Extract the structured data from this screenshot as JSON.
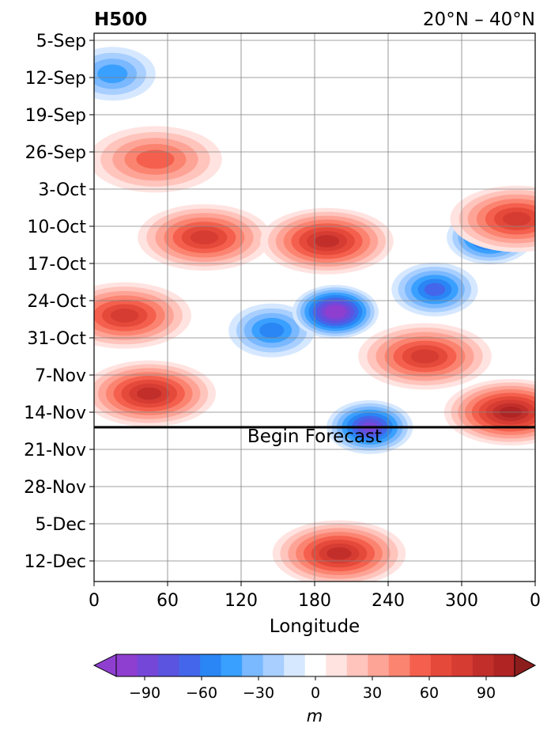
{
  "chart_data": {
    "type": "heatmap",
    "title_left": "H500",
    "title_right": "20°N – 40°N",
    "xlabel": "Longitude",
    "ylabel": "",
    "x_ticks": [
      "0",
      "60",
      "120",
      "180",
      "240",
      "300",
      "0"
    ],
    "y_ticks": [
      "5-Sep",
      "12-Sep",
      "19-Sep",
      "26-Sep",
      "3-Oct",
      "10-Oct",
      "17-Oct",
      "24-Oct",
      "31-Oct",
      "7-Nov",
      "14-Nov",
      "21-Nov",
      "28-Nov",
      "5-Dec",
      "12-Dec"
    ],
    "xlim": [
      0,
      360
    ],
    "grid": true,
    "forecast_line": {
      "label": "Begin Forecast",
      "date": "17-Nov"
    },
    "colorbar": {
      "ticks": [
        "−90",
        "−60",
        "−30",
        "0",
        "30",
        "60",
        "90"
      ],
      "levels": [
        -105,
        -95,
        -85,
        -75,
        -65,
        -55,
        -45,
        -35,
        -25,
        -15,
        -5,
        5,
        15,
        25,
        35,
        45,
        55,
        65,
        75,
        85,
        95,
        105
      ],
      "unit": "m",
      "extend": "both"
    },
    "colors": {
      "neg": [
        "#8f3fd0",
        "#7547d8",
        "#5b54e0",
        "#4366ea",
        "#2a86f4",
        "#3aa0ff",
        "#7ab8ff",
        "#a8cfff",
        "#d6e8ff"
      ],
      "zero": "#ffffff",
      "pos": [
        "#ffe3e0",
        "#ffc4bc",
        "#fea497",
        "#fb8471",
        "#f4604d",
        "#e5493a",
        "#d63c32",
        "#c22f2b",
        "#b02424"
      ],
      "under": "#8f3fd0",
      "over": "#8c1d1d"
    },
    "anomaly_features": [
      {
        "lon": 15,
        "date_index": 0.9,
        "value": -35
      },
      {
        "lon": 50,
        "date_index": 3.2,
        "value": 45
      },
      {
        "lon": 90,
        "date_index": 5.3,
        "value": 65
      },
      {
        "lon": 25,
        "date_index": 7.4,
        "value": 70
      },
      {
        "lon": 45,
        "date_index": 9.5,
        "value": 80
      },
      {
        "lon": 145,
        "date_index": 7.8,
        "value": -45
      },
      {
        "lon": 197,
        "date_index": 7.3,
        "value": -95
      },
      {
        "lon": 190,
        "date_index": 5.4,
        "value": 75
      },
      {
        "lon": 225,
        "date_index": 10.4,
        "value": -80
      },
      {
        "lon": 278,
        "date_index": 6.7,
        "value": -60
      },
      {
        "lon": 323,
        "date_index": 5.3,
        "value": -65
      },
      {
        "lon": 340,
        "date_index": 10.0,
        "value": 90
      },
      {
        "lon": 200,
        "date_index": 13.8,
        "value": 80
      },
      {
        "lon": 345,
        "date_index": 4.8,
        "value": 70
      },
      {
        "lon": 270,
        "date_index": 8.5,
        "value": 65
      }
    ]
  }
}
